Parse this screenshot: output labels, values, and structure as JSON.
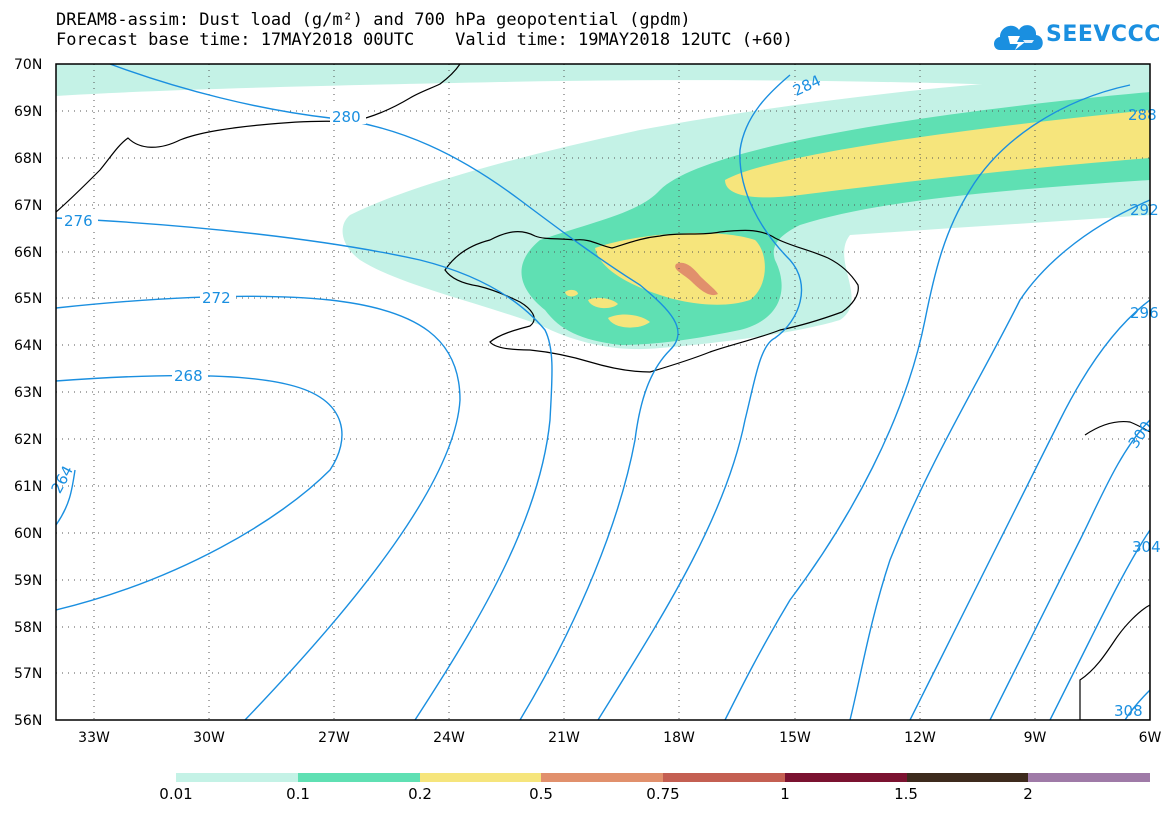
{
  "header": {
    "title_line1": "DREAM8-assim: Dust load (g/m²) and 700 hPa geopotential (gpdm)",
    "title_line2": "Forecast base time: 17MAY2018 00UTC    Valid time: 19MAY2018 12UTC (+60)"
  },
  "logo": {
    "text": "SEEVCCC",
    "color": "#1a8fe0"
  },
  "map": {
    "lat_labels": [
      "70N",
      "69N",
      "68N",
      "67N",
      "66N",
      "65N",
      "64N",
      "63N",
      "62N",
      "61N",
      "60N",
      "59N",
      "58N",
      "57N",
      "56N"
    ],
    "lon_labels": [
      "33W",
      "30W",
      "27W",
      "24W",
      "21W",
      "18W",
      "15W",
      "12W",
      "9W",
      "6W"
    ],
    "contour_labels": [
      "280",
      "276",
      "272",
      "268",
      "264",
      "284",
      "288",
      "292",
      "296",
      "300",
      "304",
      "308"
    ],
    "contour_color": "#1a8fe0",
    "coastline_color": "#000000"
  },
  "legend": {
    "colors": [
      "#c4f2e6",
      "#5fe0b3",
      "#f6e57c",
      "#e1906c",
      "#c45f52",
      "#7b1230",
      "#3d2a1d",
      "#9f7aa7"
    ],
    "labels": [
      "0.01",
      "0.1",
      "0.2",
      "0.5",
      "0.75",
      "1",
      "1.5",
      "2"
    ]
  }
}
